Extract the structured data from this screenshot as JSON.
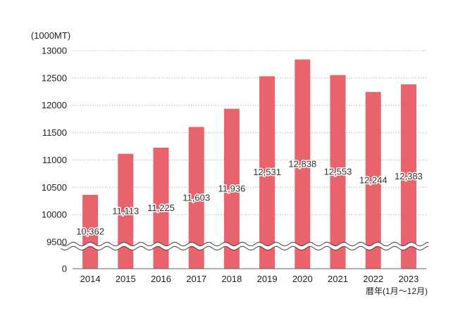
{
  "chart_data": {
    "type": "bar",
    "unit_label": "(1000MT)",
    "xlabel": "暦年(1月〜12月)",
    "categories": [
      "2014",
      "2015",
      "2016",
      "2017",
      "2018",
      "2019",
      "2020",
      "2021",
      "2022",
      "2023"
    ],
    "values": [
      10362,
      11113,
      11225,
      11603,
      11936,
      12531,
      12838,
      12553,
      12244,
      12383
    ],
    "data_labels": [
      "10,362",
      "11,113",
      "11,225",
      "11,603",
      "11,936",
      "12,531",
      "12,838",
      "12,553",
      "12,244",
      "12,383"
    ],
    "y_ticks": [
      0,
      9500,
      10000,
      10500,
      11000,
      11500,
      12000,
      12500,
      13000
    ],
    "y_tick_labels": [
      "0",
      "9500",
      "10000",
      "10500",
      "11000",
      "11500",
      "12000",
      "12500",
      "13000"
    ],
    "ylim": [
      0,
      13000
    ],
    "axis_break": [
      0,
      9500
    ],
    "grid": true,
    "legend": false,
    "bar_color": "#e8636b"
  }
}
